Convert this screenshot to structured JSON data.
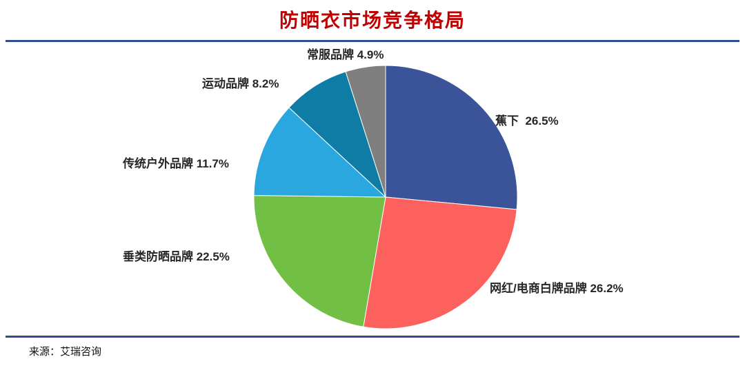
{
  "title": "防晒衣市场竞争格局",
  "source": "来源：艾瑞咨询",
  "colors": {
    "title": "#C00000",
    "divider": "#2E4D8E",
    "background": "#FFFFFF",
    "label_text": "#262626"
  },
  "chart_data": {
    "type": "pie",
    "title": "防晒衣市场竞争格局",
    "source": "来源：艾瑞咨询",
    "direction": "clockwise",
    "start_angle_deg": 0,
    "legend_position": "none",
    "unit": "%",
    "categories": [
      "蕉下",
      "网红/电商白牌品牌",
      "垂类防晒品牌",
      "传统户外品牌",
      "运动品牌",
      "常服品牌"
    ],
    "values": [
      26.5,
      26.2,
      22.5,
      11.7,
      8.2,
      4.9
    ],
    "slice_colors": [
      "#3B5398",
      "#FC615E",
      "#71BF45",
      "#2BA7E0",
      "#0F7CA6",
      "#7F7F7F"
    ],
    "labels": [
      "蕉下  26.5%",
      "网红/电商白牌品牌 26.2%",
      "垂类防晒品牌 22.5%",
      "传统户外品牌 11.7%",
      "运动品牌 8.2%",
      "常服品牌 4.9%"
    ]
  }
}
